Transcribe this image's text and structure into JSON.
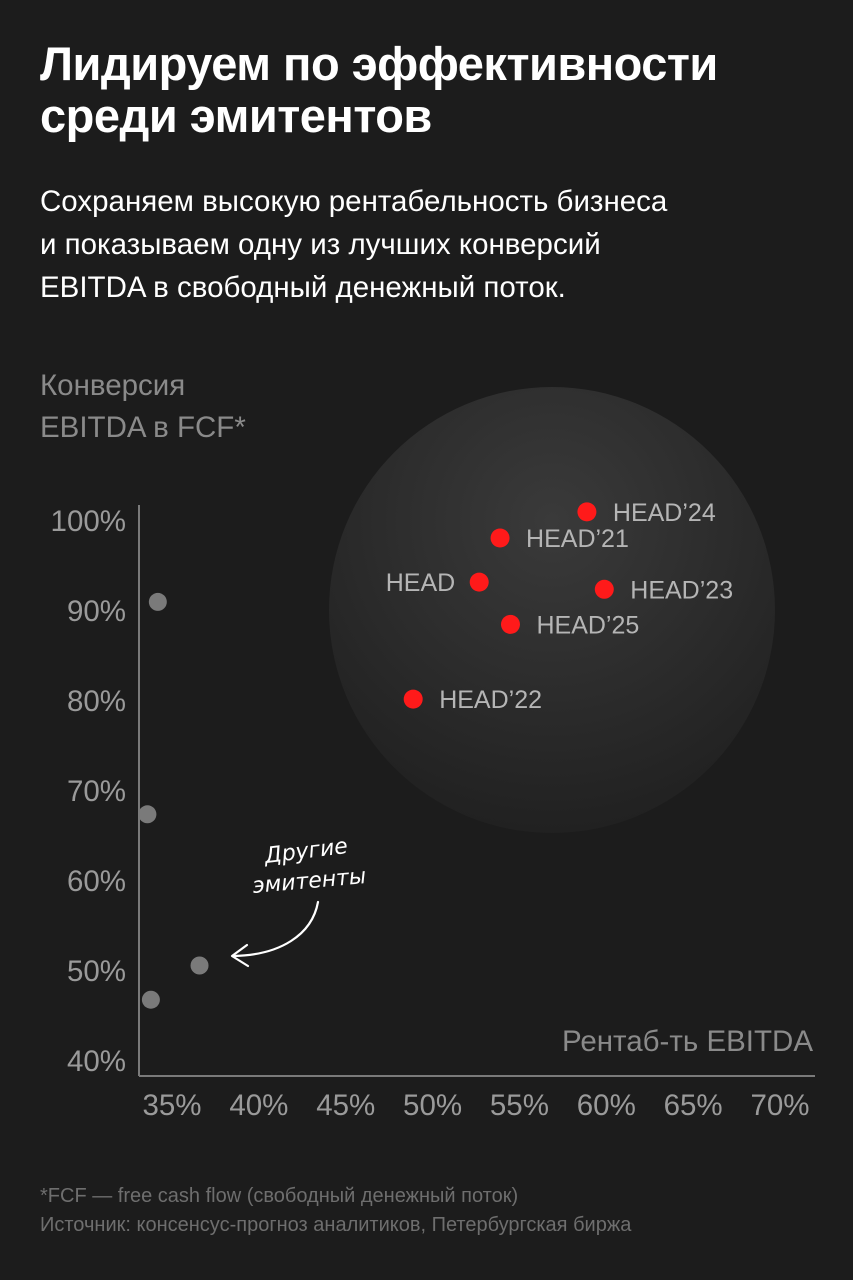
{
  "header": {
    "title_line1": "Лидируем по эффективности",
    "title_line2": "среди эмитентов",
    "subtitle_line1": "Сохраняем высокую рентабельность бизнеса",
    "subtitle_line2": "и показываем одну из лучших конверсий",
    "subtitle_line3": "EBITDA в свободный денежный поток."
  },
  "chart_data": {
    "type": "scatter",
    "ylabel_line1": "Конверсия",
    "ylabel_line2": "EBITDA в FCF*",
    "xlabel": "Рентаб-ть EBITDA",
    "x_ticks": [
      "35%",
      "40%",
      "45%",
      "50%",
      "55%",
      "60%",
      "65%",
      "70%"
    ],
    "y_ticks": [
      "100%",
      "90%",
      "80%",
      "70%",
      "60%",
      "50%",
      "40%"
    ],
    "xlim": [
      33.5,
      71
    ],
    "ylim": [
      39,
      101.5
    ],
    "annotation": {
      "line1": "Другие",
      "line2": "эмитенты"
    },
    "highlight_series": [
      {
        "label": "HEAD’24",
        "x": 59.0,
        "y": 100.9
      },
      {
        "label": "HEAD’21",
        "x": 54.0,
        "y": 98.0
      },
      {
        "label": "HEAD",
        "x": 52.8,
        "y": 93.1
      },
      {
        "label": "HEAD’23",
        "x": 60.0,
        "y": 92.3
      },
      {
        "label": "HEAD’25",
        "x": 54.6,
        "y": 88.4
      },
      {
        "label": "HEAD’22",
        "x": 49.0,
        "y": 80.1
      }
    ],
    "other_issuers": [
      {
        "x": 34.3,
        "y": 90.9
      },
      {
        "x": 33.7,
        "y": 67.3
      },
      {
        "x": 36.7,
        "y": 50.5
      },
      {
        "x": 33.9,
        "y": 46.7
      }
    ],
    "colors": {
      "highlight": "#ff1a1a",
      "other": "#7a7a7a",
      "axis": "#7a7a7a",
      "tick_text": "#9a9a9a",
      "highlight_label": "#b5b5b5"
    }
  },
  "footer": {
    "footnote": "*FCF — free cash flow (свободный денежный поток)",
    "source": "Источник: консенсус-прогноз аналитиков, Петербургская биржа"
  }
}
